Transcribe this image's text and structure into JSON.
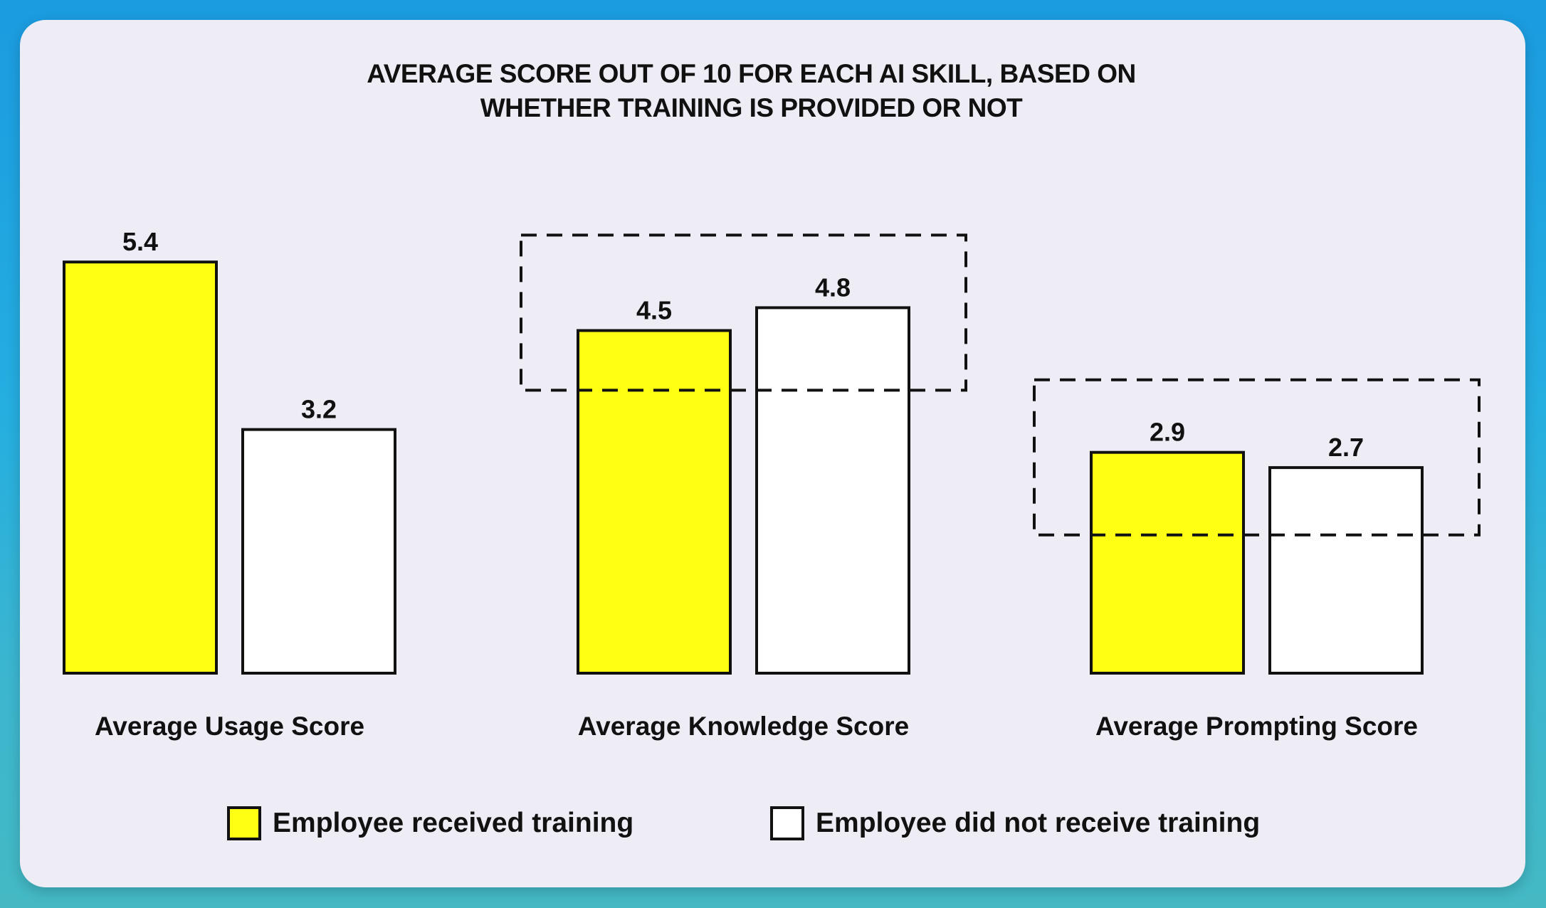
{
  "title_lines": [
    "AVERAGE SCORE OUT OF 10 FOR EACH AI SKILL, BASED ON",
    "WHETHER TRAINING IS PROVIDED OR NOT"
  ],
  "legend": {
    "trained": "Employee received training",
    "untrained": "Employee did not receive training"
  },
  "colors": {
    "trained": "#ffff14",
    "untrained": "#ffffff",
    "outline": "#111111"
  },
  "chart_data": {
    "type": "bar",
    "title": "AVERAGE SCORE OUT OF 10 FOR EACH AI SKILL, BASED ON WHETHER TRAINING IS PROVIDED OR NOT",
    "categories": [
      "Average Usage Score",
      "Average Knowledge Score",
      "Average Prompting Score"
    ],
    "series": [
      {
        "name": "Employee received training",
        "key": "trained",
        "values": [
          5.4,
          4.5,
          2.9
        ]
      },
      {
        "name": "Employee did not receive training",
        "key": "untrained",
        "values": [
          3.2,
          4.8,
          2.7
        ]
      }
    ],
    "value_labels": [
      [
        "5.4",
        "4.5",
        "2.9"
      ],
      [
        "3.2",
        "4.8",
        "2.7"
      ]
    ],
    "highlighted_categories": [
      "Average Knowledge Score",
      "Average Prompting Score"
    ],
    "xlabel": "",
    "ylabel": "",
    "ylim": [
      0,
      10
    ],
    "grid": false,
    "axes_visible": false,
    "legend_position": "bottom-center"
  }
}
